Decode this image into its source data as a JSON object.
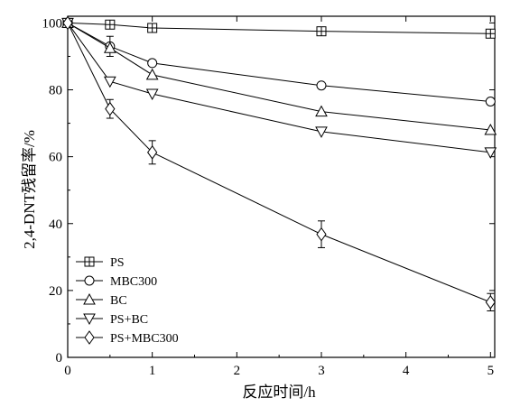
{
  "chart_data": {
    "type": "line",
    "xlabel": "反应时间/h",
    "ylabel": "2,4-DNT残留率/%",
    "xlim": [
      0,
      5.05
    ],
    "ylim": [
      0,
      102
    ],
    "xticks": [
      0,
      1,
      2,
      3,
      4,
      5
    ],
    "yticks": [
      0,
      20,
      40,
      60,
      80,
      100
    ],
    "grid": false,
    "legend_position": "bottom-left",
    "series": [
      {
        "name": "PS",
        "marker": "square-cross",
        "x": [
          0,
          0.5,
          1,
          3,
          5
        ],
        "y": [
          100,
          99.5,
          98.5,
          97.5,
          96.8
        ],
        "err": [
          0,
          0,
          0,
          0,
          0
        ]
      },
      {
        "name": "MBC300",
        "marker": "circle",
        "x": [
          0,
          0.5,
          1,
          3,
          5
        ],
        "y": [
          100,
          93,
          88,
          81.3,
          76.5
        ],
        "err": [
          0,
          3.0,
          0,
          0,
          0
        ]
      },
      {
        "name": "BC",
        "marker": "triangle-up",
        "x": [
          0,
          0.5,
          1,
          3,
          5
        ],
        "y": [
          100,
          92.5,
          84.5,
          73.5,
          68
        ],
        "err": [
          0,
          0,
          0,
          0,
          0
        ]
      },
      {
        "name": "PS+BC",
        "marker": "triangle-down",
        "x": [
          0,
          0.5,
          1,
          3,
          5
        ],
        "y": [
          100,
          82.5,
          78.8,
          67.5,
          61.3
        ],
        "err": [
          0,
          0,
          0,
          0,
          0
        ]
      },
      {
        "name": "PS+MBC300",
        "marker": "diamond",
        "x": [
          0,
          0.5,
          1,
          3,
          5
        ],
        "y": [
          100,
          74.3,
          61.3,
          36.8,
          16.5
        ],
        "err": [
          0,
          2.8,
          3.5,
          4.0,
          2.6
        ]
      }
    ]
  }
}
